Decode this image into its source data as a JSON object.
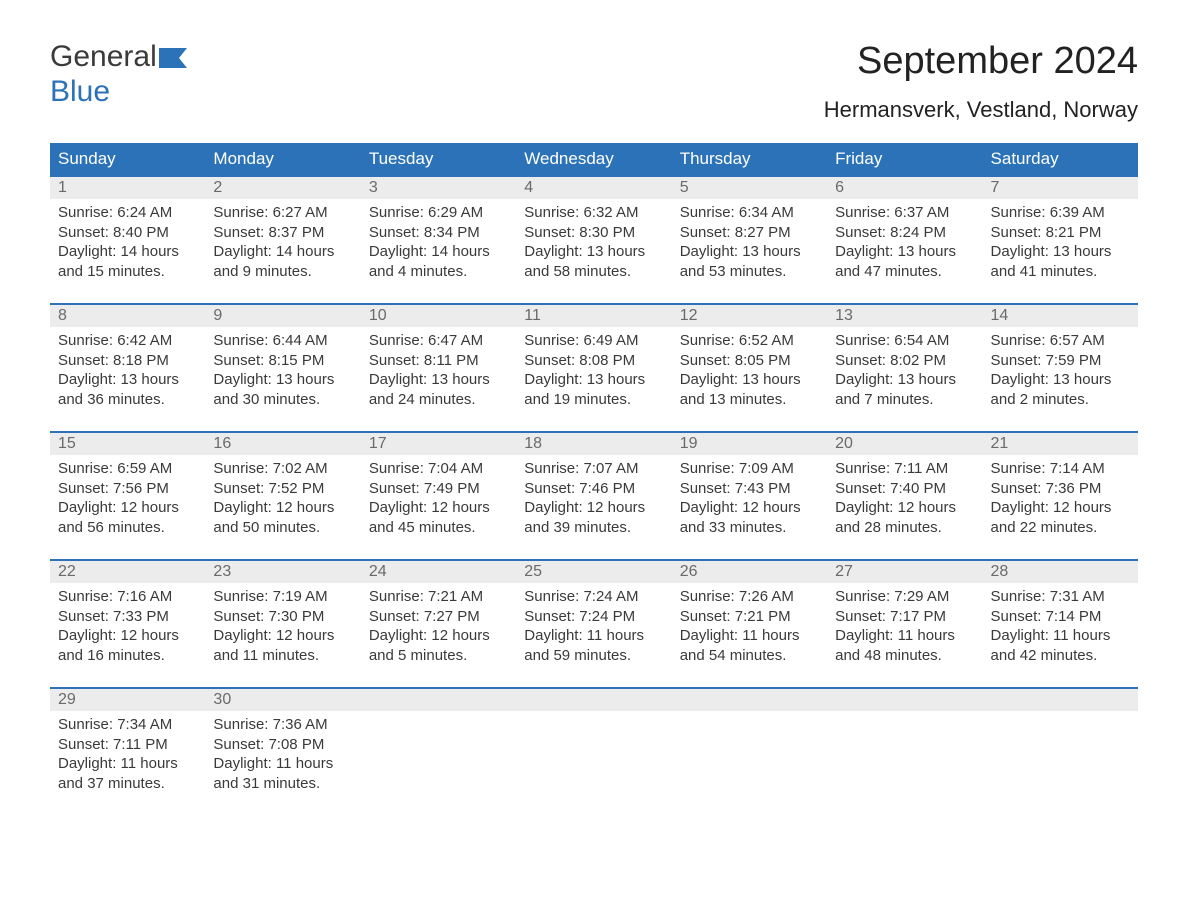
{
  "brand": {
    "part1": "General",
    "part2": "Blue"
  },
  "title": "September 2024",
  "location": "Hermansverk, Vestland, Norway",
  "colors": {
    "header_bg": "#2b72b8",
    "header_text": "#ffffff",
    "daynum_bg": "#ececec",
    "daynum_text": "#6a6a6a",
    "body_text": "#3a3a3a",
    "border": "#2b72b8",
    "page_bg": "#ffffff"
  },
  "fonts": {
    "title_size_pt": 38,
    "location_size_pt": 22,
    "header_size_pt": 17,
    "daynum_size_pt": 16,
    "body_size_pt": 15
  },
  "day_headers": [
    "Sunday",
    "Monday",
    "Tuesday",
    "Wednesday",
    "Thursday",
    "Friday",
    "Saturday"
  ],
  "weeks": [
    [
      {
        "n": "1",
        "sr": "Sunrise: 6:24 AM",
        "ss": "Sunset: 8:40 PM",
        "d1": "Daylight: 14 hours",
        "d2": "and 15 minutes."
      },
      {
        "n": "2",
        "sr": "Sunrise: 6:27 AM",
        "ss": "Sunset: 8:37 PM",
        "d1": "Daylight: 14 hours",
        "d2": "and 9 minutes."
      },
      {
        "n": "3",
        "sr": "Sunrise: 6:29 AM",
        "ss": "Sunset: 8:34 PM",
        "d1": "Daylight: 14 hours",
        "d2": "and 4 minutes."
      },
      {
        "n": "4",
        "sr": "Sunrise: 6:32 AM",
        "ss": "Sunset: 8:30 PM",
        "d1": "Daylight: 13 hours",
        "d2": "and 58 minutes."
      },
      {
        "n": "5",
        "sr": "Sunrise: 6:34 AM",
        "ss": "Sunset: 8:27 PM",
        "d1": "Daylight: 13 hours",
        "d2": "and 53 minutes."
      },
      {
        "n": "6",
        "sr": "Sunrise: 6:37 AM",
        "ss": "Sunset: 8:24 PM",
        "d1": "Daylight: 13 hours",
        "d2": "and 47 minutes."
      },
      {
        "n": "7",
        "sr": "Sunrise: 6:39 AM",
        "ss": "Sunset: 8:21 PM",
        "d1": "Daylight: 13 hours",
        "d2": "and 41 minutes."
      }
    ],
    [
      {
        "n": "8",
        "sr": "Sunrise: 6:42 AM",
        "ss": "Sunset: 8:18 PM",
        "d1": "Daylight: 13 hours",
        "d2": "and 36 minutes."
      },
      {
        "n": "9",
        "sr": "Sunrise: 6:44 AM",
        "ss": "Sunset: 8:15 PM",
        "d1": "Daylight: 13 hours",
        "d2": "and 30 minutes."
      },
      {
        "n": "10",
        "sr": "Sunrise: 6:47 AM",
        "ss": "Sunset: 8:11 PM",
        "d1": "Daylight: 13 hours",
        "d2": "and 24 minutes."
      },
      {
        "n": "11",
        "sr": "Sunrise: 6:49 AM",
        "ss": "Sunset: 8:08 PM",
        "d1": "Daylight: 13 hours",
        "d2": "and 19 minutes."
      },
      {
        "n": "12",
        "sr": "Sunrise: 6:52 AM",
        "ss": "Sunset: 8:05 PM",
        "d1": "Daylight: 13 hours",
        "d2": "and 13 minutes."
      },
      {
        "n": "13",
        "sr": "Sunrise: 6:54 AM",
        "ss": "Sunset: 8:02 PM",
        "d1": "Daylight: 13 hours",
        "d2": "and 7 minutes."
      },
      {
        "n": "14",
        "sr": "Sunrise: 6:57 AM",
        "ss": "Sunset: 7:59 PM",
        "d1": "Daylight: 13 hours",
        "d2": "and 2 minutes."
      }
    ],
    [
      {
        "n": "15",
        "sr": "Sunrise: 6:59 AM",
        "ss": "Sunset: 7:56 PM",
        "d1": "Daylight: 12 hours",
        "d2": "and 56 minutes."
      },
      {
        "n": "16",
        "sr": "Sunrise: 7:02 AM",
        "ss": "Sunset: 7:52 PM",
        "d1": "Daylight: 12 hours",
        "d2": "and 50 minutes."
      },
      {
        "n": "17",
        "sr": "Sunrise: 7:04 AM",
        "ss": "Sunset: 7:49 PM",
        "d1": "Daylight: 12 hours",
        "d2": "and 45 minutes."
      },
      {
        "n": "18",
        "sr": "Sunrise: 7:07 AM",
        "ss": "Sunset: 7:46 PM",
        "d1": "Daylight: 12 hours",
        "d2": "and 39 minutes."
      },
      {
        "n": "19",
        "sr": "Sunrise: 7:09 AM",
        "ss": "Sunset: 7:43 PM",
        "d1": "Daylight: 12 hours",
        "d2": "and 33 minutes."
      },
      {
        "n": "20",
        "sr": "Sunrise: 7:11 AM",
        "ss": "Sunset: 7:40 PM",
        "d1": "Daylight: 12 hours",
        "d2": "and 28 minutes."
      },
      {
        "n": "21",
        "sr": "Sunrise: 7:14 AM",
        "ss": "Sunset: 7:36 PM",
        "d1": "Daylight: 12 hours",
        "d2": "and 22 minutes."
      }
    ],
    [
      {
        "n": "22",
        "sr": "Sunrise: 7:16 AM",
        "ss": "Sunset: 7:33 PM",
        "d1": "Daylight: 12 hours",
        "d2": "and 16 minutes."
      },
      {
        "n": "23",
        "sr": "Sunrise: 7:19 AM",
        "ss": "Sunset: 7:30 PM",
        "d1": "Daylight: 12 hours",
        "d2": "and 11 minutes."
      },
      {
        "n": "24",
        "sr": "Sunrise: 7:21 AM",
        "ss": "Sunset: 7:27 PM",
        "d1": "Daylight: 12 hours",
        "d2": "and 5 minutes."
      },
      {
        "n": "25",
        "sr": "Sunrise: 7:24 AM",
        "ss": "Sunset: 7:24 PM",
        "d1": "Daylight: 11 hours",
        "d2": "and 59 minutes."
      },
      {
        "n": "26",
        "sr": "Sunrise: 7:26 AM",
        "ss": "Sunset: 7:21 PM",
        "d1": "Daylight: 11 hours",
        "d2": "and 54 minutes."
      },
      {
        "n": "27",
        "sr": "Sunrise: 7:29 AM",
        "ss": "Sunset: 7:17 PM",
        "d1": "Daylight: 11 hours",
        "d2": "and 48 minutes."
      },
      {
        "n": "28",
        "sr": "Sunrise: 7:31 AM",
        "ss": "Sunset: 7:14 PM",
        "d1": "Daylight: 11 hours",
        "d2": "and 42 minutes."
      }
    ],
    [
      {
        "n": "29",
        "sr": "Sunrise: 7:34 AM",
        "ss": "Sunset: 7:11 PM",
        "d1": "Daylight: 11 hours",
        "d2": "and 37 minutes."
      },
      {
        "n": "30",
        "sr": "Sunrise: 7:36 AM",
        "ss": "Sunset: 7:08 PM",
        "d1": "Daylight: 11 hours",
        "d2": "and 31 minutes."
      },
      null,
      null,
      null,
      null,
      null
    ]
  ]
}
